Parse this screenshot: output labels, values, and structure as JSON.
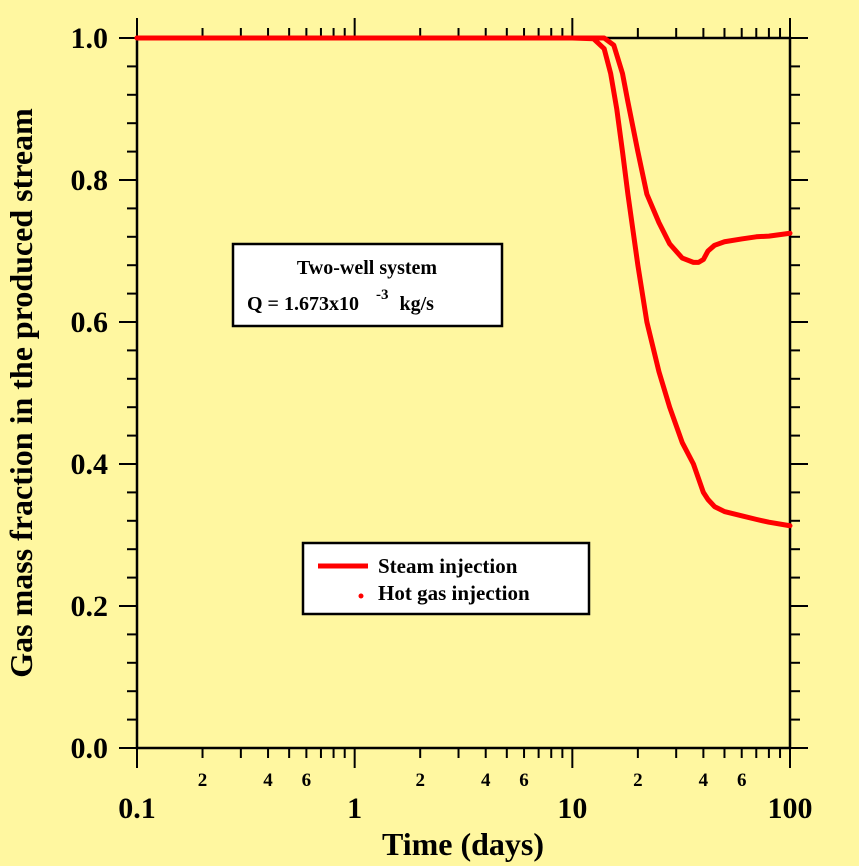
{
  "chart_data": {
    "type": "line",
    "xscale": "log",
    "xlim": [
      0.1,
      100
    ],
    "ylim": [
      0.0,
      1.0
    ],
    "xlabel": "Time (days)",
    "ylabel": "Gas mass fraction in the produced stream",
    "x_major_ticks": [
      0.1,
      1,
      10,
      100
    ],
    "x_major_tick_labels": [
      "0.1",
      "1",
      "10",
      "100"
    ],
    "x_minor_labels": [
      {
        "value": 0.2,
        "label": "2"
      },
      {
        "value": 0.4,
        "label": "4"
      },
      {
        "value": 0.6,
        "label": "6"
      },
      {
        "value": 2,
        "label": "2"
      },
      {
        "value": 4,
        "label": "4"
      },
      {
        "value": 6,
        "label": "6"
      },
      {
        "value": 20,
        "label": "2"
      },
      {
        "value": 40,
        "label": "4"
      },
      {
        "value": 60,
        "label": "6"
      }
    ],
    "y_ticks": [
      0.0,
      0.2,
      0.4,
      0.6,
      0.8,
      1.0
    ],
    "y_tick_labels": [
      "0.0",
      "0.2",
      "0.4",
      "0.6",
      "0.8",
      "1.0"
    ],
    "annotation": {
      "line1": "Two-well system",
      "line2_base": "Q = 1.673x10",
      "line2_exp": "-3",
      "line2_unit": "kg/s"
    },
    "legend": {
      "placement": "lower-center",
      "entries": [
        "Steam injection",
        "Hot gas injection"
      ]
    },
    "series": [
      {
        "name": "Steam injection",
        "color": "#FF0000",
        "style": "solid",
        "x": [
          0.1,
          1,
          10,
          12.5,
          14,
          15,
          16,
          17,
          18,
          20,
          22,
          25,
          28,
          32,
          36,
          40,
          42,
          45,
          50,
          60,
          70,
          80,
          100
        ],
        "y": [
          1.0,
          1.0,
          1.0,
          0.999,
          0.985,
          0.95,
          0.9,
          0.84,
          0.78,
          0.68,
          0.6,
          0.53,
          0.48,
          0.43,
          0.4,
          0.36,
          0.35,
          0.34,
          0.333,
          0.327,
          0.322,
          0.318,
          0.313
        ]
      },
      {
        "name": "Hot gas injection",
        "color": "#FF0000",
        "style": "dotted",
        "x": [
          0.1,
          1,
          10,
          14,
          15.5,
          17,
          18,
          20,
          22,
          25,
          28,
          32,
          36,
          38,
          40,
          42,
          45,
          50,
          60,
          70,
          80,
          100
        ],
        "y": [
          1.0,
          1.0,
          1.0,
          1.0,
          0.99,
          0.95,
          0.91,
          0.84,
          0.78,
          0.74,
          0.71,
          0.69,
          0.684,
          0.684,
          0.688,
          0.7,
          0.708,
          0.713,
          0.717,
          0.72,
          0.721,
          0.725
        ]
      }
    ]
  }
}
